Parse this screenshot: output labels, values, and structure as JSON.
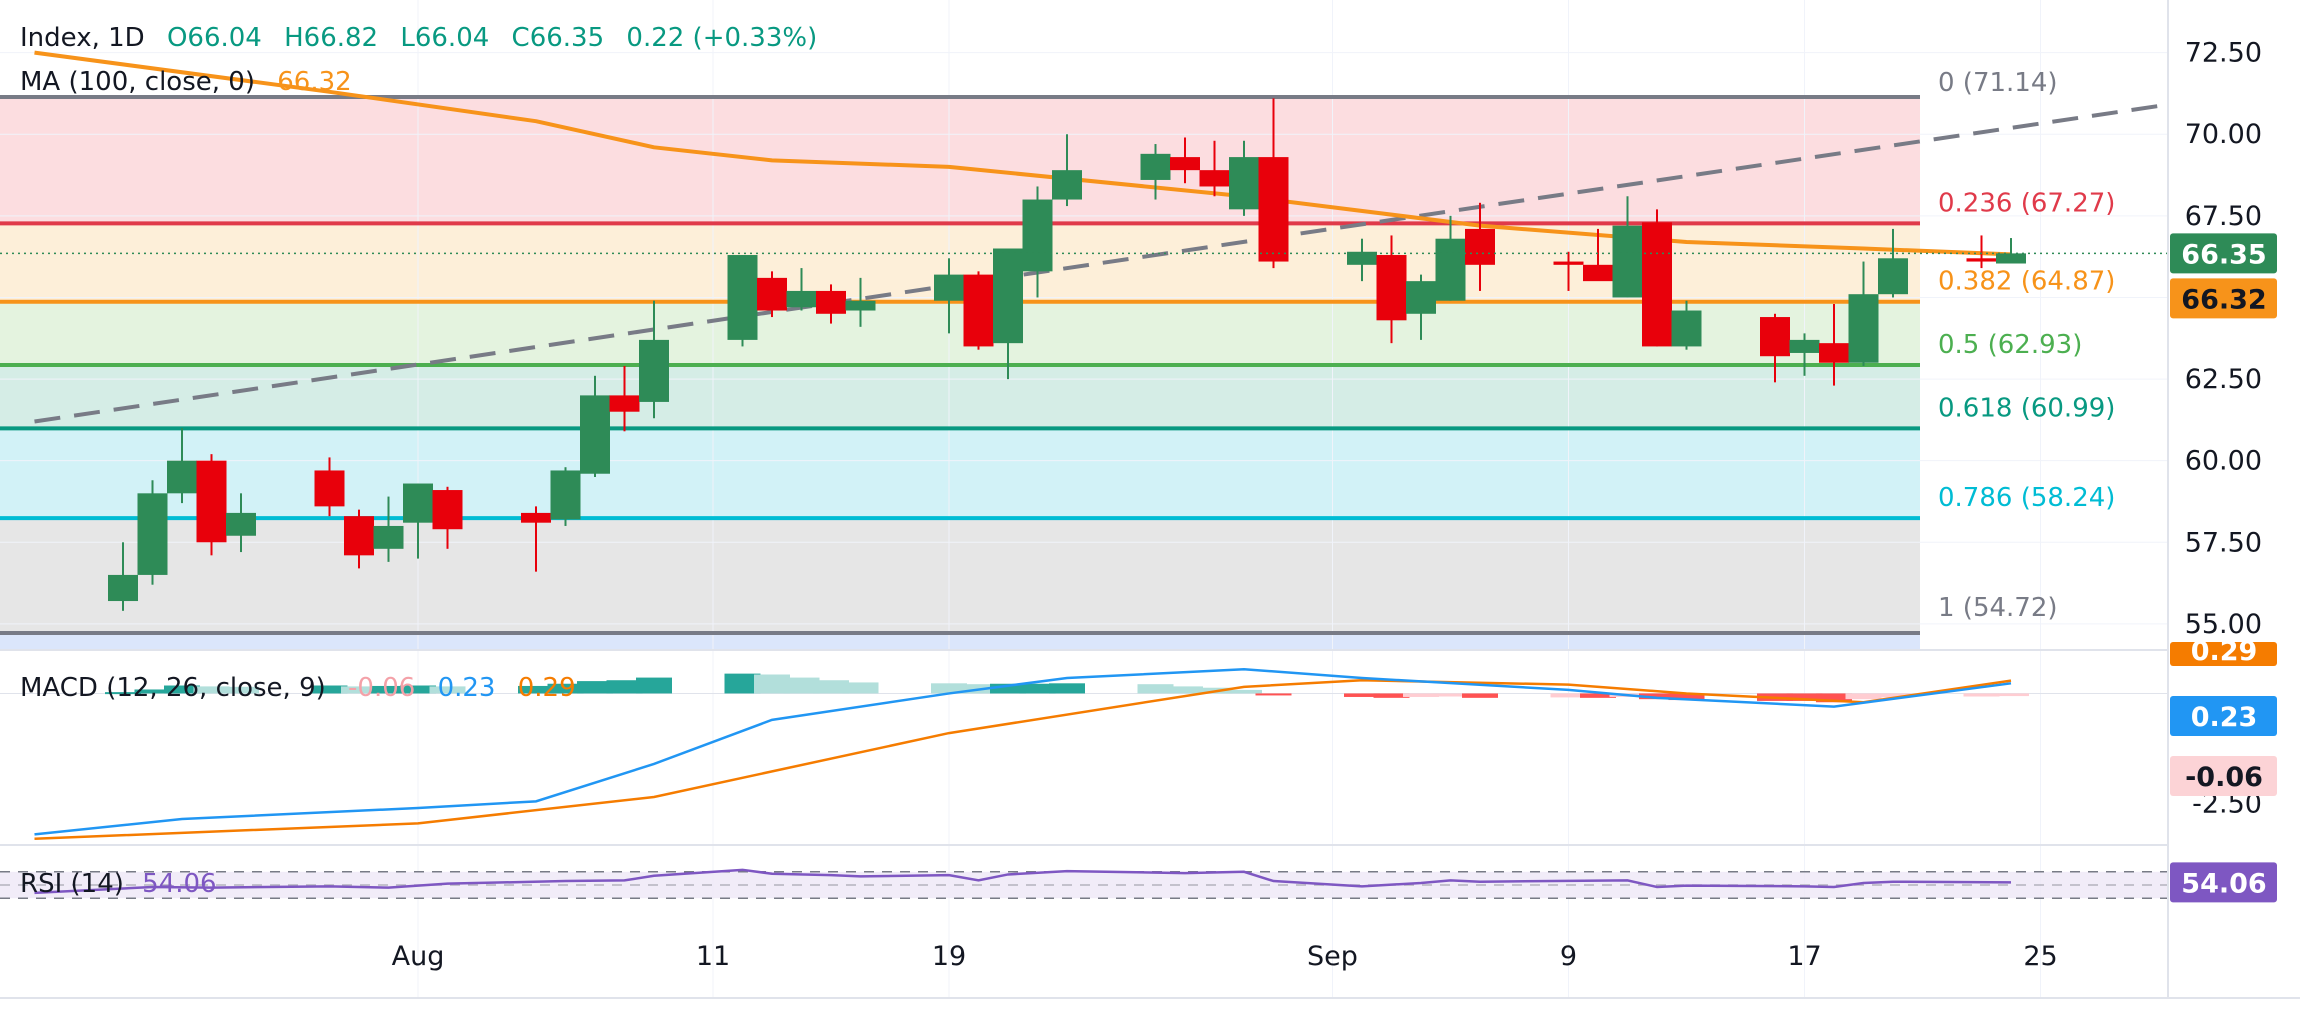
{
  "header": {
    "symbol": "Index, 1D",
    "open": "O66.04",
    "high": "H66.82",
    "low": "L66.04",
    "close": "C66.35",
    "change": "0.22 (+0.33%)",
    "ma_label": "MA (100, close, 0)",
    "ma_value": "66.32"
  },
  "macd_legend": {
    "label": "MACD (12, 26, close, 9)",
    "hist": "-0.06",
    "macd": "0.23",
    "signal": "0.29"
  },
  "rsi_legend": {
    "label": "RSI (14)",
    "value": "54.06"
  },
  "colors": {
    "up": "#2e8b57",
    "down": "#e8000b",
    "ma": "#f7931a",
    "macd_line": "#2196f3",
    "signal_line": "#f57c00",
    "rsi_line": "#7e57c2",
    "text": "#131722",
    "green_text": "#089981"
  },
  "chart_data": [
    {
      "type": "candlestick",
      "title": "Index, 1D",
      "y_ticks": [
        55,
        57.5,
        60,
        62.5,
        65,
        67.5,
        70,
        72.5
      ],
      "y_tick_labels": [
        "55.00",
        "57.50",
        "60.00",
        "62.50",
        "65.00",
        "67.50",
        "70.00",
        "72.50"
      ],
      "ylim": [
        54.2,
        73.5
      ],
      "x_tick_labels": [
        {
          "date": "2024-08-01",
          "label": "Aug"
        },
        {
          "date": "2024-08-11",
          "label": "11"
        },
        {
          "date": "2024-08-19",
          "label": "19"
        },
        {
          "date": "2024-09-01",
          "label": "Sep"
        },
        {
          "date": "2024-09-09",
          "label": "9"
        },
        {
          "date": "2024-09-17",
          "label": "17"
        },
        {
          "date": "2024-09-25",
          "label": "25"
        }
      ],
      "candles": [
        {
          "date": "2024-07-22",
          "o": 55.7,
          "h": 57.5,
          "l": 55.4,
          "c": 56.5
        },
        {
          "date": "2024-07-23",
          "o": 56.5,
          "h": 59.4,
          "l": 56.2,
          "c": 59.0
        },
        {
          "date": "2024-07-24",
          "o": 59.0,
          "h": 61.0,
          "l": 58.7,
          "c": 60.0
        },
        {
          "date": "2024-07-25",
          "o": 60.0,
          "h": 60.2,
          "l": 57.1,
          "c": 57.5
        },
        {
          "date": "2024-07-26",
          "o": 57.7,
          "h": 59.0,
          "l": 57.2,
          "c": 58.4
        },
        {
          "date": "2024-07-29",
          "o": 59.7,
          "h": 60.1,
          "l": 58.3,
          "c": 58.6
        },
        {
          "date": "2024-07-30",
          "o": 58.3,
          "h": 58.5,
          "l": 56.7,
          "c": 57.1
        },
        {
          "date": "2024-07-31",
          "o": 57.3,
          "h": 58.9,
          "l": 56.9,
          "c": 58.0
        },
        {
          "date": "2024-08-01",
          "o": 58.1,
          "h": 59.3,
          "l": 57.0,
          "c": 59.3
        },
        {
          "date": "2024-08-02",
          "o": 59.1,
          "h": 59.2,
          "l": 57.3,
          "c": 57.9
        },
        {
          "date": "2024-08-05",
          "o": 58.4,
          "h": 58.6,
          "l": 56.6,
          "c": 58.1
        },
        {
          "date": "2024-08-06",
          "o": 58.2,
          "h": 59.8,
          "l": 58.0,
          "c": 59.7
        },
        {
          "date": "2024-08-07",
          "o": 59.6,
          "h": 62.6,
          "l": 59.5,
          "c": 62.0
        },
        {
          "date": "2024-08-08",
          "o": 62.0,
          "h": 62.9,
          "l": 60.9,
          "c": 61.5
        },
        {
          "date": "2024-08-09",
          "o": 61.8,
          "h": 64.9,
          "l": 61.3,
          "c": 63.7
        },
        {
          "date": "2024-08-12",
          "o": 63.7,
          "h": 66.3,
          "l": 63.5,
          "c": 66.3
        },
        {
          "date": "2024-08-13",
          "o": 65.6,
          "h": 65.8,
          "l": 64.4,
          "c": 64.6
        },
        {
          "date": "2024-08-14",
          "o": 64.7,
          "h": 65.9,
          "l": 64.6,
          "c": 65.2
        },
        {
          "date": "2024-08-15",
          "o": 65.2,
          "h": 65.4,
          "l": 64.2,
          "c": 64.5
        },
        {
          "date": "2024-08-16",
          "o": 64.6,
          "h": 65.6,
          "l": 64.1,
          "c": 64.9
        },
        {
          "date": "2024-08-19",
          "o": 64.9,
          "h": 66.2,
          "l": 63.9,
          "c": 65.7
        },
        {
          "date": "2024-08-20",
          "o": 65.7,
          "h": 65.8,
          "l": 63.4,
          "c": 63.5
        },
        {
          "date": "2024-08-21",
          "o": 63.6,
          "h": 66.5,
          "l": 62.5,
          "c": 66.5
        },
        {
          "date": "2024-08-22",
          "o": 65.8,
          "h": 68.4,
          "l": 65.0,
          "c": 68.0
        },
        {
          "date": "2024-08-23",
          "o": 68.0,
          "h": 70.0,
          "l": 67.8,
          "c": 68.9
        },
        {
          "date": "2024-08-26",
          "o": 68.6,
          "h": 69.7,
          "l": 68.0,
          "c": 69.4
        },
        {
          "date": "2024-08-27",
          "o": 69.3,
          "h": 69.9,
          "l": 68.5,
          "c": 68.9
        },
        {
          "date": "2024-08-28",
          "o": 68.9,
          "h": 69.8,
          "l": 68.1,
          "c": 68.4
        },
        {
          "date": "2024-08-29",
          "o": 67.7,
          "h": 69.8,
          "l": 67.5,
          "c": 69.3
        },
        {
          "date": "2024-08-30",
          "o": 69.3,
          "h": 71.1,
          "l": 65.9,
          "c": 66.1
        },
        {
          "date": "2024-09-02",
          "o": 66.0,
          "h": 66.8,
          "l": 65.5,
          "c": 66.4
        },
        {
          "date": "2024-09-03",
          "o": 66.3,
          "h": 66.9,
          "l": 63.6,
          "c": 64.3
        },
        {
          "date": "2024-09-04",
          "o": 64.5,
          "h": 65.7,
          "l": 63.7,
          "c": 65.5
        },
        {
          "date": "2024-09-05",
          "o": 64.9,
          "h": 67.5,
          "l": 64.9,
          "c": 66.8
        },
        {
          "date": "2024-09-06",
          "o": 67.1,
          "h": 67.9,
          "l": 65.2,
          "c": 66.0
        },
        {
          "date": "2024-09-09",
          "o": 66.1,
          "h": 66.4,
          "l": 65.2,
          "c": 66.0
        },
        {
          "date": "2024-09-10",
          "o": 66.0,
          "h": 67.1,
          "l": 65.6,
          "c": 65.5
        },
        {
          "date": "2024-09-11",
          "o": 65.0,
          "h": 68.1,
          "l": 65.0,
          "c": 67.2
        },
        {
          "date": "2024-09-12",
          "o": 67.3,
          "h": 67.7,
          "l": 63.5,
          "c": 63.5
        },
        {
          "date": "2024-09-13",
          "o": 63.5,
          "h": 64.9,
          "l": 63.4,
          "c": 64.6
        },
        {
          "date": "2024-09-16",
          "o": 64.4,
          "h": 64.5,
          "l": 62.4,
          "c": 63.2
        },
        {
          "date": "2024-09-17",
          "o": 63.3,
          "h": 63.9,
          "l": 62.6,
          "c": 63.7
        },
        {
          "date": "2024-09-18",
          "o": 63.6,
          "h": 64.8,
          "l": 62.3,
          "c": 63.0
        },
        {
          "date": "2024-09-19",
          "o": 63.0,
          "h": 66.1,
          "l": 62.9,
          "c": 65.1
        },
        {
          "date": "2024-09-20",
          "o": 65.1,
          "h": 67.1,
          "l": 65.0,
          "c": 66.2
        },
        {
          "date": "2024-09-23",
          "o": 66.2,
          "h": 66.9,
          "l": 65.9,
          "c": 66.1
        },
        {
          "date": "2024-09-24",
          "o": 66.04,
          "h": 66.82,
          "l": 66.04,
          "c": 66.35
        }
      ],
      "moving_average": {
        "name": "MA (100, close, 0)",
        "points": [
          {
            "date": "2024-07-19",
            "v": 72.5
          },
          {
            "date": "2024-07-29",
            "v": 71.3
          },
          {
            "date": "2024-08-05",
            "v": 70.4
          },
          {
            "date": "2024-08-09",
            "v": 69.6
          },
          {
            "date": "2024-08-13",
            "v": 69.2
          },
          {
            "date": "2024-08-19",
            "v": 69.0
          },
          {
            "date": "2024-08-29",
            "v": 68.1
          },
          {
            "date": "2024-09-06",
            "v": 67.2
          },
          {
            "date": "2024-09-13",
            "v": 66.7
          },
          {
            "date": "2024-09-19",
            "v": 66.5
          },
          {
            "date": "2024-09-24",
            "v": 66.32
          }
        ]
      },
      "trendline": {
        "from": {
          "date": "2024-07-19",
          "v": 61.2
        },
        "to": {
          "date": "2024-09-30",
          "v": 71.0
        },
        "style": "dashed"
      },
      "fibonacci": [
        {
          "ratio": "0",
          "value": 71.14,
          "label": "0 (71.14)",
          "color": "#787b86"
        },
        {
          "ratio": "0.236",
          "value": 67.27,
          "label": "0.236 (67.27)",
          "color": "#e03a4a"
        },
        {
          "ratio": "0.382",
          "value": 64.87,
          "label": "0.382 (64.87)",
          "color": "#f7931a"
        },
        {
          "ratio": "0.5",
          "value": 62.93,
          "label": "0.5 (62.93)",
          "color": "#4caf50"
        },
        {
          "ratio": "0.618",
          "value": 60.99,
          "label": "0.618 (60.99)",
          "color": "#089981"
        },
        {
          "ratio": "0.786",
          "value": 58.24,
          "label": "0.786 (58.24)",
          "color": "#00bcd4"
        },
        {
          "ratio": "1",
          "value": 54.72,
          "label": "1 (54.72)",
          "color": "#787b86"
        }
      ],
      "fib_zone_fills": [
        "#fcdde0",
        "#fdefd9",
        "#e4f3df",
        "#d5ede6",
        "#d2f2f7",
        "#e6e6e6",
        "#dbe6fb"
      ],
      "price_badges": [
        {
          "value": 66.35,
          "label": "66.35",
          "color": "#2e8b57"
        },
        {
          "value": 66.32,
          "label": "66.32",
          "color": "#f7931a"
        }
      ],
      "last_date": "2024-09-24"
    },
    {
      "type": "macd",
      "title": "MACD (12, 26, close, 9)",
      "ylim": [
        -3.35,
        0.85
      ],
      "y_tick_labels": [
        {
          "value": -2.5,
          "label": "-2.50"
        }
      ],
      "macd_points": [
        {
          "date": "2024-07-19",
          "v": -3.2
        },
        {
          "date": "2024-07-24",
          "v": -2.85
        },
        {
          "date": "2024-08-01",
          "v": -2.6
        },
        {
          "date": "2024-08-05",
          "v": -2.45
        },
        {
          "date": "2024-08-09",
          "v": -1.6
        },
        {
          "date": "2024-08-13",
          "v": -0.6
        },
        {
          "date": "2024-08-19",
          "v": 0.0
        },
        {
          "date": "2024-08-23",
          "v": 0.35
        },
        {
          "date": "2024-08-29",
          "v": 0.55
        },
        {
          "date": "2024-09-02",
          "v": 0.35
        },
        {
          "date": "2024-09-09",
          "v": 0.08
        },
        {
          "date": "2024-09-12",
          "v": -0.1
        },
        {
          "date": "2024-09-18",
          "v": -0.3
        },
        {
          "date": "2024-09-24",
          "v": 0.23
        }
      ],
      "signal_points": [
        {
          "date": "2024-07-19",
          "v": -3.3
        },
        {
          "date": "2024-08-01",
          "v": -2.95
        },
        {
          "date": "2024-08-09",
          "v": -2.35
        },
        {
          "date": "2024-08-19",
          "v": -0.9
        },
        {
          "date": "2024-08-29",
          "v": 0.15
        },
        {
          "date": "2024-09-02",
          "v": 0.3
        },
        {
          "date": "2024-09-09",
          "v": 0.2
        },
        {
          "date": "2024-09-13",
          "v": 0.0
        },
        {
          "date": "2024-09-19",
          "v": -0.2
        },
        {
          "date": "2024-09-24",
          "v": 0.29
        }
      ],
      "histogram": [
        {
          "date": "2024-07-22",
          "v": 0.03
        },
        {
          "date": "2024-07-23",
          "v": 0.09
        },
        {
          "date": "2024-07-24",
          "v": 0.18
        },
        {
          "date": "2024-07-25",
          "v": 0.16
        },
        {
          "date": "2024-07-26",
          "v": 0.15
        },
        {
          "date": "2024-07-29",
          "v": 0.18
        },
        {
          "date": "2024-07-30",
          "v": 0.16
        },
        {
          "date": "2024-07-31",
          "v": 0.17
        },
        {
          "date": "2024-08-01",
          "v": 0.18
        },
        {
          "date": "2024-08-02",
          "v": 0.16
        },
        {
          "date": "2024-08-05",
          "v": 0.17
        },
        {
          "date": "2024-08-06",
          "v": 0.22
        },
        {
          "date": "2024-08-07",
          "v": 0.28
        },
        {
          "date": "2024-08-08",
          "v": 0.3
        },
        {
          "date": "2024-08-09",
          "v": 0.36
        },
        {
          "date": "2024-08-12",
          "v": 0.45
        },
        {
          "date": "2024-08-13",
          "v": 0.43
        },
        {
          "date": "2024-08-14",
          "v": 0.36
        },
        {
          "date": "2024-08-15",
          "v": 0.3
        },
        {
          "date": "2024-08-16",
          "v": 0.25
        },
        {
          "date": "2024-08-19",
          "v": 0.23
        },
        {
          "date": "2024-08-20",
          "v": 0.21
        },
        {
          "date": "2024-08-21",
          "v": 0.22
        },
        {
          "date": "2024-08-22",
          "v": 0.22
        },
        {
          "date": "2024-08-23",
          "v": 0.23
        },
        {
          "date": "2024-08-26",
          "v": 0.21
        },
        {
          "date": "2024-08-27",
          "v": 0.16
        },
        {
          "date": "2024-08-28",
          "v": 0.13
        },
        {
          "date": "2024-08-29",
          "v": 0.08
        },
        {
          "date": "2024-08-30",
          "v": -0.03
        },
        {
          "date": "2024-09-02",
          "v": -0.08
        },
        {
          "date": "2024-09-03",
          "v": -0.1
        },
        {
          "date": "2024-09-04",
          "v": -0.08
        },
        {
          "date": "2024-09-05",
          "v": -0.07
        },
        {
          "date": "2024-09-06",
          "v": -0.1
        },
        {
          "date": "2024-09-09",
          "v": -0.09
        },
        {
          "date": "2024-09-10",
          "v": -0.1
        },
        {
          "date": "2024-09-11",
          "v": -0.08
        },
        {
          "date": "2024-09-12",
          "v": -0.13
        },
        {
          "date": "2024-09-13",
          "v": -0.15
        },
        {
          "date": "2024-09-16",
          "v": -0.17
        },
        {
          "date": "2024-09-17",
          "v": -0.17
        },
        {
          "date": "2024-09-18",
          "v": -0.2
        },
        {
          "date": "2024-09-19",
          "v": -0.13
        },
        {
          "date": "2024-09-20",
          "v": -0.09
        },
        {
          "date": "2024-09-23",
          "v": -0.07
        },
        {
          "date": "2024-09-24",
          "v": -0.06
        }
      ],
      "badges": [
        {
          "label": "0.29",
          "color": "#f57c00",
          "text_color": "#ffffff"
        },
        {
          "label": "0.23",
          "color": "#2196f3",
          "text_color": "#ffffff"
        },
        {
          "label": "-0.06",
          "color": "#fcd3d6",
          "text_color": "#131722"
        }
      ]
    },
    {
      "type": "rsi",
      "title": "RSI (14)",
      "ylim": [
        0,
        100
      ],
      "bands": [
        70,
        30
      ],
      "points": [
        {
          "date": "2024-07-19",
          "v": 38
        },
        {
          "date": "2024-07-23",
          "v": 47
        },
        {
          "date": "2024-07-25",
          "v": 46
        },
        {
          "date": "2024-07-29",
          "v": 48
        },
        {
          "date": "2024-07-31",
          "v": 46
        },
        {
          "date": "2024-08-02",
          "v": 52
        },
        {
          "date": "2024-08-06",
          "v": 56
        },
        {
          "date": "2024-08-08",
          "v": 57
        },
        {
          "date": "2024-08-09",
          "v": 64
        },
        {
          "date": "2024-08-12",
          "v": 73
        },
        {
          "date": "2024-08-13",
          "v": 67
        },
        {
          "date": "2024-08-15",
          "v": 65
        },
        {
          "date": "2024-08-16",
          "v": 63
        },
        {
          "date": "2024-08-19",
          "v": 65
        },
        {
          "date": "2024-08-20",
          "v": 57
        },
        {
          "date": "2024-08-21",
          "v": 66
        },
        {
          "date": "2024-08-23",
          "v": 71
        },
        {
          "date": "2024-08-27",
          "v": 68
        },
        {
          "date": "2024-08-29",
          "v": 70
        },
        {
          "date": "2024-08-30",
          "v": 56
        },
        {
          "date": "2024-09-02",
          "v": 48
        },
        {
          "date": "2024-09-04",
          "v": 53
        },
        {
          "date": "2024-09-05",
          "v": 57
        },
        {
          "date": "2024-09-06",
          "v": 55
        },
        {
          "date": "2024-09-11",
          "v": 57
        },
        {
          "date": "2024-09-12",
          "v": 47
        },
        {
          "date": "2024-09-13",
          "v": 49
        },
        {
          "date": "2024-09-17",
          "v": 48
        },
        {
          "date": "2024-09-18",
          "v": 47
        },
        {
          "date": "2024-09-19",
          "v": 53
        },
        {
          "date": "2024-09-20",
          "v": 55
        },
        {
          "date": "2024-09-24",
          "v": 54.06
        }
      ],
      "badge": {
        "label": "54.06",
        "color": "#7e57c2",
        "text_color": "#ffffff"
      }
    }
  ]
}
